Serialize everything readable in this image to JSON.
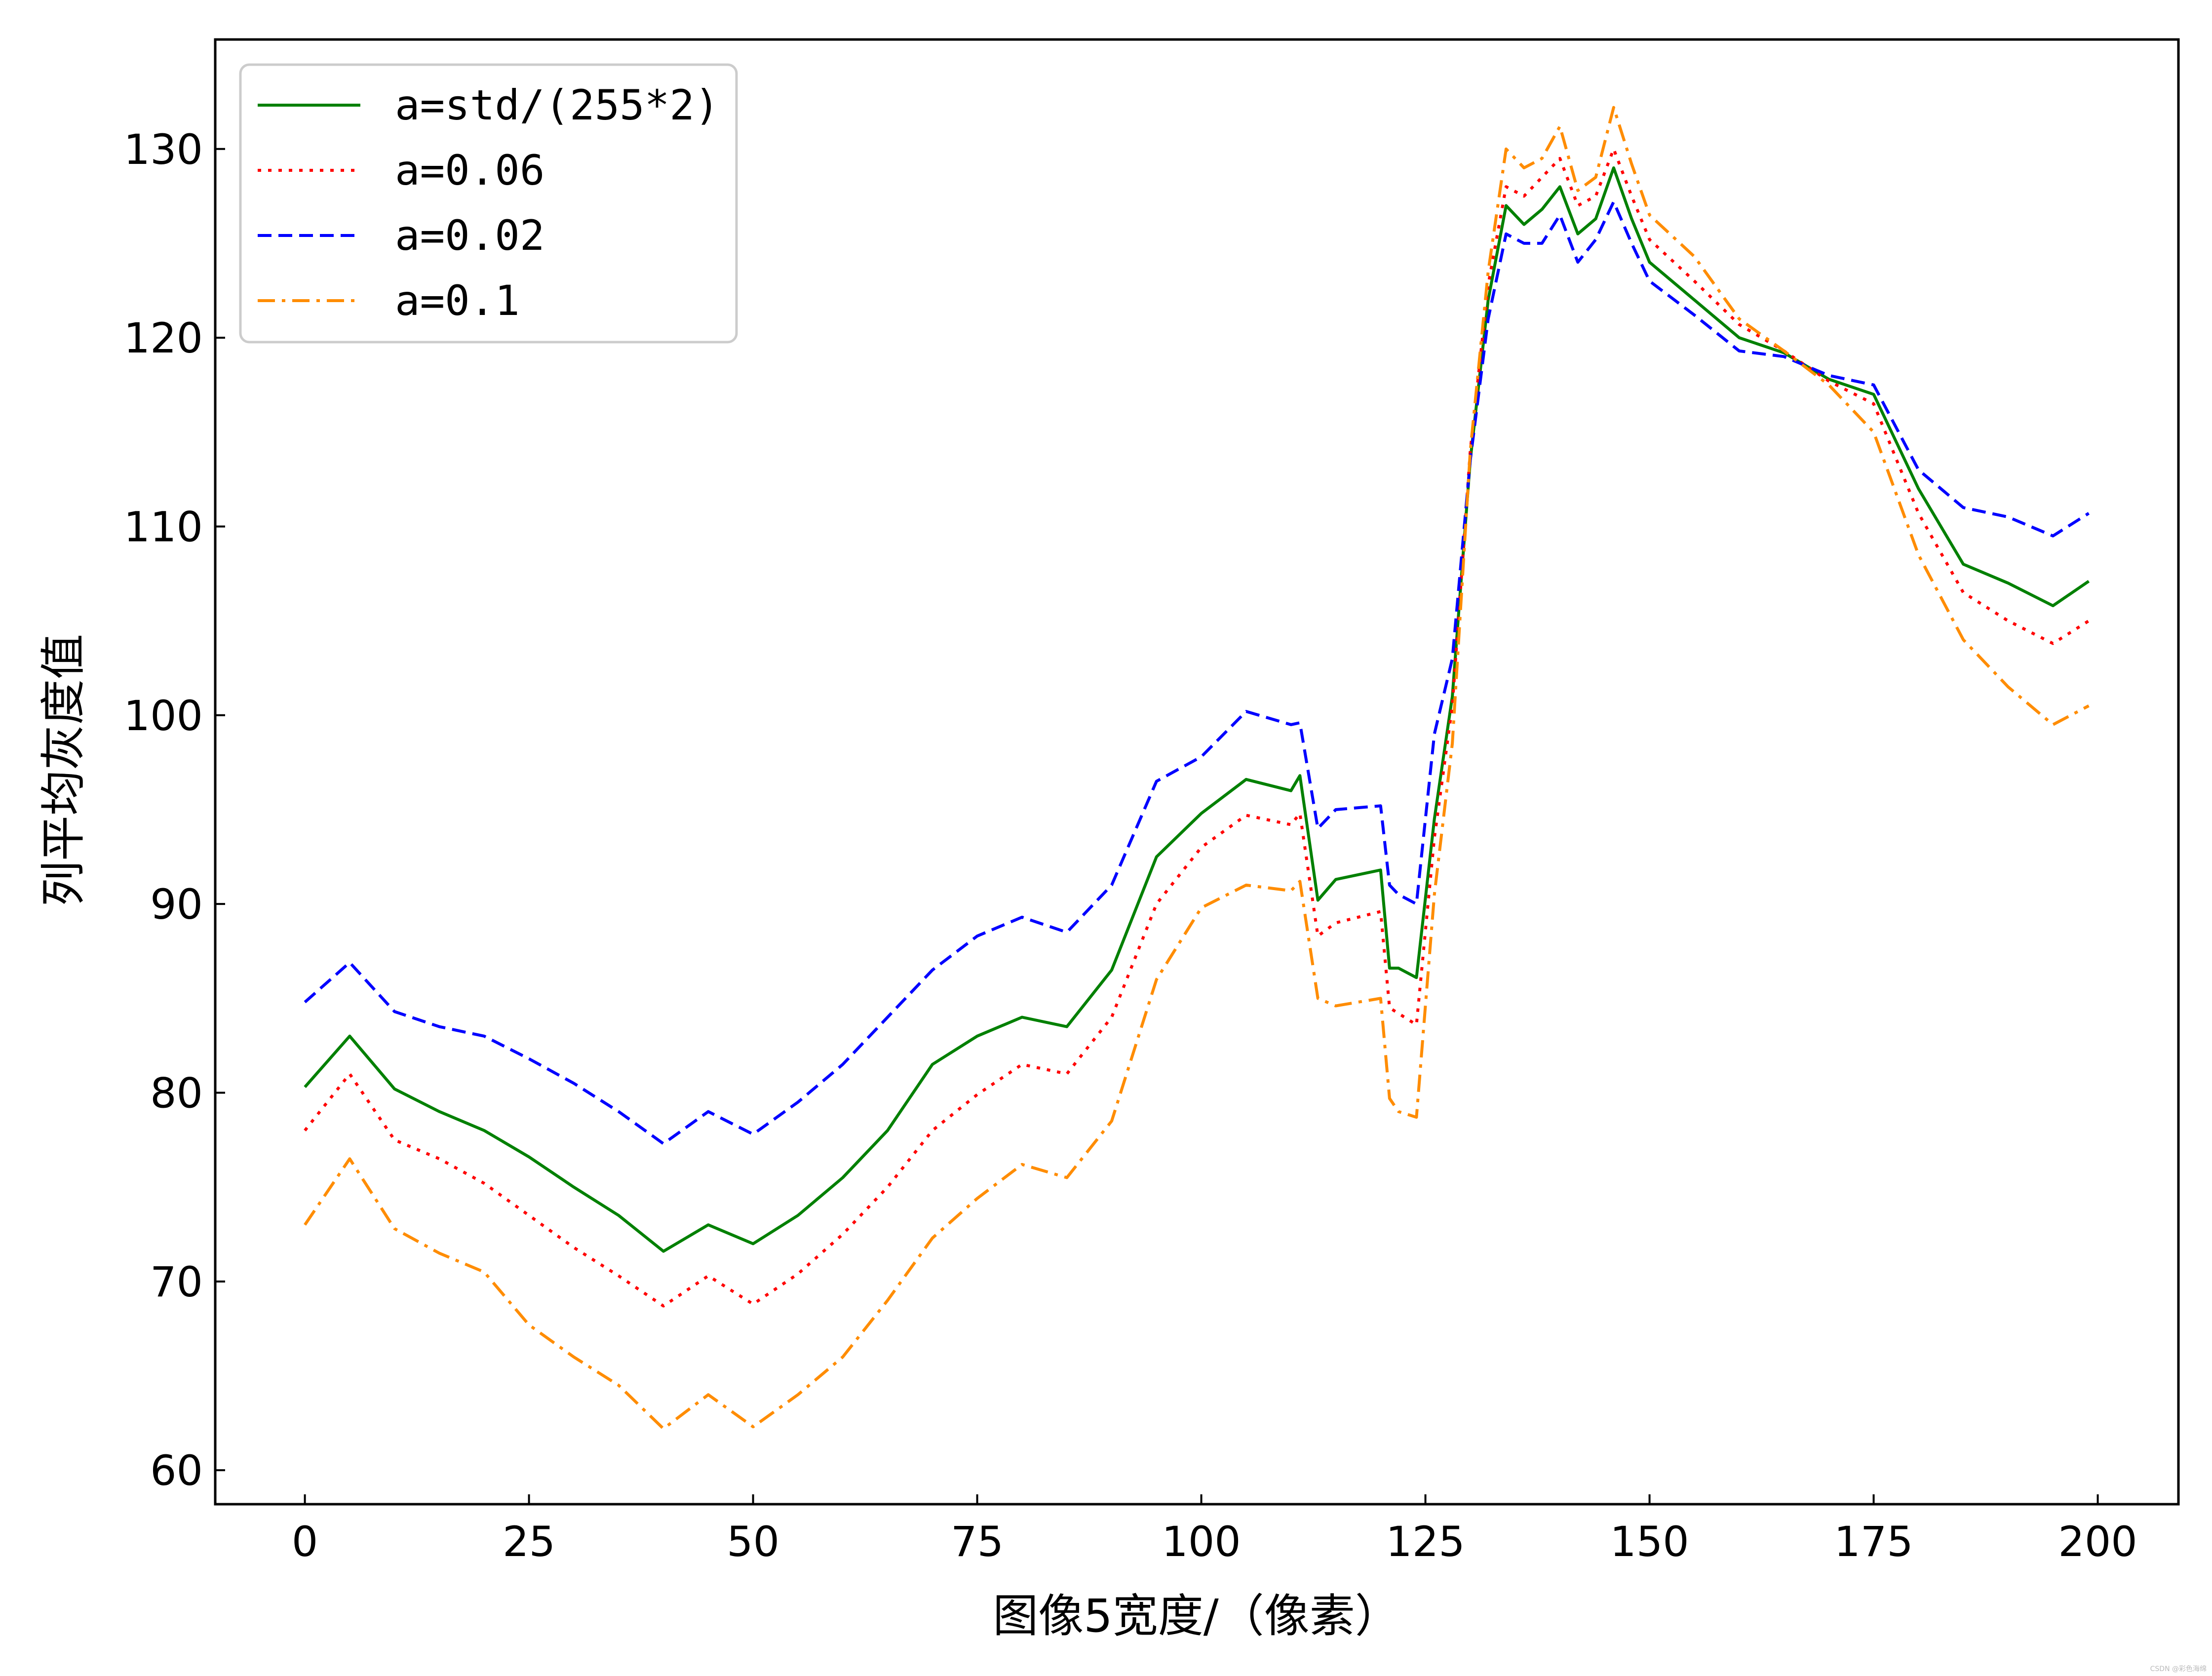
{
  "chart_data": {
    "type": "line",
    "title": "",
    "xlabel": "图像5宽度/（像素）",
    "ylabel": "列平均灰度值",
    "xlim": [
      -10,
      209
    ],
    "ylim": [
      58.2,
      135.8
    ],
    "xticks": [
      0,
      25,
      50,
      75,
      100,
      125,
      150,
      175,
      200
    ],
    "yticks": [
      60,
      70,
      80,
      90,
      100,
      110,
      120,
      130
    ],
    "grid": false,
    "legend_position": "upper-left",
    "x": [
      0,
      5,
      10,
      15,
      20,
      25,
      30,
      35,
      40,
      45,
      50,
      55,
      60,
      65,
      70,
      75,
      80,
      85,
      90,
      95,
      100,
      105,
      110,
      111,
      113,
      115,
      120,
      121,
      122,
      124,
      126,
      128,
      130,
      132,
      134,
      136,
      138,
      140,
      142,
      144,
      146,
      148,
      150,
      155,
      160,
      165,
      170,
      175,
      180,
      185,
      190,
      195,
      199
    ],
    "series": [
      {
        "name": "a=std/(255*2)",
        "color": "#008000",
        "style": "solid",
        "values": [
          80.3,
          83.0,
          80.2,
          79.0,
          78.0,
          76.6,
          75.0,
          73.5,
          71.6,
          73.0,
          72.0,
          73.5,
          75.5,
          78.0,
          81.5,
          83.0,
          84.0,
          83.5,
          86.5,
          92.5,
          94.8,
          96.6,
          96.0,
          96.8,
          90.2,
          91.3,
          91.8,
          86.6,
          86.6,
          86.1,
          94.5,
          101.0,
          113.5,
          122.0,
          127.0,
          126.0,
          126.8,
          128.0,
          125.5,
          126.3,
          129.0,
          126.3,
          124.0,
          122.0,
          120.0,
          119.2,
          117.8,
          117.0,
          112.0,
          108.0,
          107.0,
          105.8,
          107.1
        ]
      },
      {
        "name": "a=0.06",
        "color": "#ff0000",
        "style": "dotted",
        "values": [
          78.0,
          81.0,
          77.5,
          76.5,
          75.2,
          73.5,
          71.8,
          70.3,
          68.7,
          70.3,
          68.8,
          70.4,
          72.5,
          75.0,
          78.0,
          79.9,
          81.5,
          81.0,
          84.0,
          90.0,
          93.0,
          94.7,
          94.2,
          94.8,
          88.3,
          89.0,
          89.6,
          84.5,
          84.2,
          83.6,
          93.5,
          100.5,
          114.0,
          122.8,
          128.0,
          127.5,
          128.5,
          129.5,
          127.0,
          127.5,
          130.0,
          127.5,
          125.2,
          123.0,
          120.7,
          119.3,
          117.7,
          116.5,
          110.7,
          106.5,
          105.0,
          103.8,
          105.0
        ]
      },
      {
        "name": "a=0.02",
        "color": "#0000ff",
        "style": "dashed",
        "values": [
          84.8,
          86.9,
          84.3,
          83.5,
          83.0,
          81.8,
          80.5,
          79.0,
          77.3,
          79.0,
          77.8,
          79.5,
          81.5,
          84.0,
          86.5,
          88.3,
          89.3,
          88.5,
          91.0,
          96.5,
          97.8,
          100.2,
          99.5,
          99.6,
          94.0,
          95.0,
          95.2,
          91.0,
          90.5,
          90.0,
          99.0,
          103.0,
          113.5,
          121.0,
          125.5,
          125.0,
          125.0,
          126.5,
          124.0,
          125.2,
          127.2,
          125.0,
          123.0,
          121.2,
          119.3,
          119.0,
          118.0,
          117.5,
          113.0,
          111.0,
          110.5,
          109.5,
          110.7
        ]
      },
      {
        "name": "a=0.1",
        "color": "#ff8c00",
        "style": "dashdot",
        "values": [
          73.0,
          76.5,
          72.8,
          71.5,
          70.5,
          67.7,
          66.0,
          64.5,
          62.2,
          64.0,
          62.3,
          64.0,
          66.0,
          69.0,
          72.3,
          74.4,
          76.2,
          75.5,
          78.5,
          86.0,
          89.8,
          91.0,
          90.7,
          91.2,
          85.0,
          84.6,
          85.0,
          79.7,
          79.0,
          78.7,
          90.5,
          98.5,
          114.0,
          123.5,
          130.0,
          129.0,
          129.5,
          131.2,
          127.8,
          128.5,
          132.2,
          129.2,
          126.5,
          124.3,
          121.0,
          119.3,
          117.5,
          115.0,
          108.5,
          104.0,
          101.5,
          99.5,
          100.5
        ]
      }
    ]
  },
  "watermark": "CSDN @彩色海绵"
}
